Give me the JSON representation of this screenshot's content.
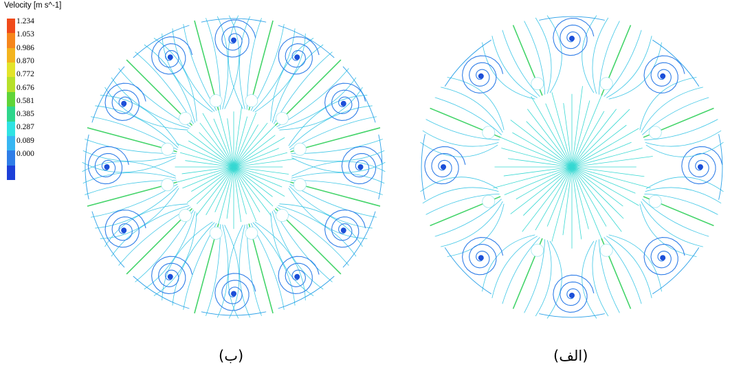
{
  "legend": {
    "title": "Velocity [m s^-1]",
    "values": [
      "1.234",
      "1.053",
      "0.986",
      "0.870",
      "0.772",
      "0.676",
      "0.581",
      "0.385",
      "0.287",
      "0.089",
      "0.000"
    ],
    "colors": [
      "#f04a1a",
      "#f6861c",
      "#f3b41e",
      "#e3e42a",
      "#b6e02a",
      "#5fd438",
      "#2ed68c",
      "#2fe3e3",
      "#37b6f2",
      "#2f7de8",
      "#1c3fd8"
    ]
  },
  "captions": {
    "left": "(ب)",
    "right": "(الف)"
  },
  "plots": {
    "left": {
      "lobes": 12,
      "accent": "#44d46a"
    },
    "right": {
      "lobes": 8,
      "accent": "#44d46a"
    }
  }
}
